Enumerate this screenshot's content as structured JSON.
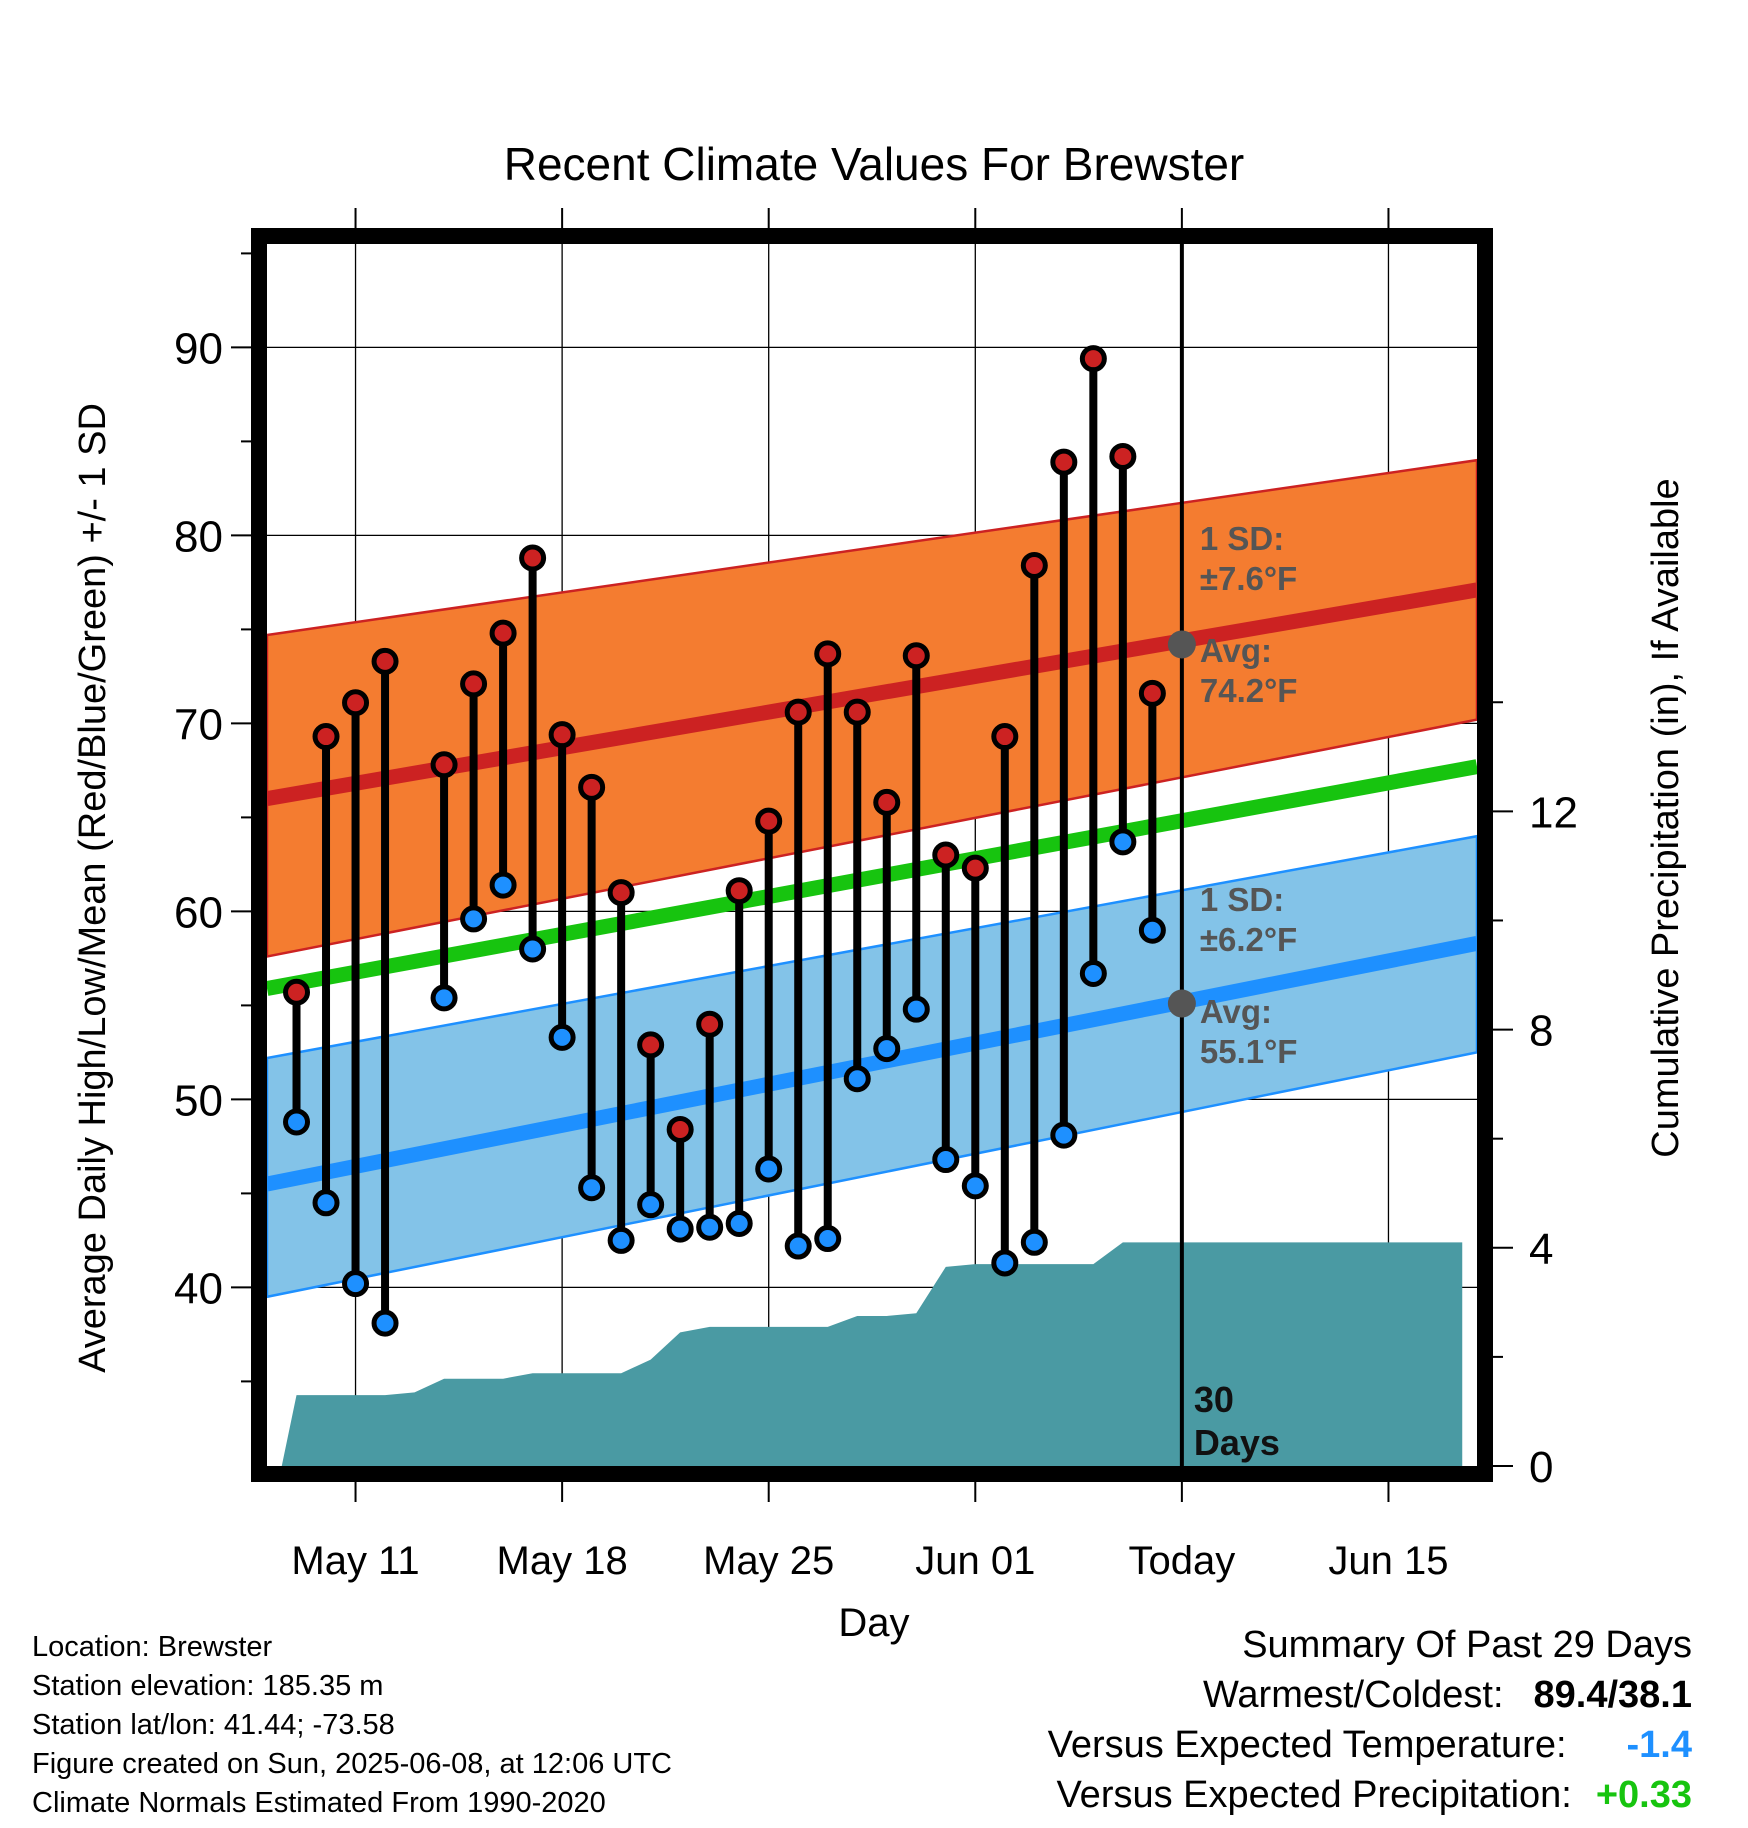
{
  "chart_data": {
    "type": "line",
    "title": "Recent Climate Values For Brewster",
    "xlabel": "Day",
    "ylabel": "Average Daily High/Low/Mean (Red/Blue/Green) +/- 1 SD",
    "y2label": "Cumulative Precipitation (in), If Available",
    "x_axis": {
      "start_date": "2025-05-08",
      "end_date": "2025-06-17",
      "ticks": [
        {
          "label": "May 11",
          "day": 3
        },
        {
          "label": "May 18",
          "day": 10
        },
        {
          "label": "May 25",
          "day": 17
        },
        {
          "label": "Jun 01",
          "day": 24
        },
        {
          "label": "Today",
          "day": 31
        },
        {
          "label": "Jun 15",
          "day": 38
        }
      ]
    },
    "ylim": [
      30.5,
      95.5
    ],
    "yticks": [
      40,
      50,
      60,
      70,
      80,
      90
    ],
    "y2lim": [
      0,
      22.4
    ],
    "y2ticks": [
      0,
      4,
      8,
      12
    ],
    "grid": true,
    "days": [
      1,
      2,
      3,
      4,
      6,
      7,
      8,
      9,
      10,
      11,
      12,
      13,
      14,
      15,
      16,
      17,
      18,
      19,
      20,
      21,
      22,
      23,
      24,
      25,
      26,
      27,
      28,
      29,
      30
    ],
    "highs": [
      55.7,
      69.3,
      71.1,
      73.3,
      67.8,
      72.1,
      74.8,
      78.8,
      69.4,
      66.6,
      61.0,
      52.9,
      48.4,
      54.0,
      61.1,
      64.8,
      70.6,
      73.7,
      70.6,
      65.8,
      73.6,
      63.0,
      62.3,
      69.3,
      78.4,
      83.9,
      89.4,
      84.2,
      71.6
    ],
    "lows": [
      48.8,
      44.5,
      40.2,
      38.1,
      55.4,
      59.6,
      61.4,
      58.0,
      53.3,
      45.3,
      42.5,
      44.4,
      43.1,
      43.2,
      43.4,
      46.3,
      42.2,
      42.6,
      51.1,
      52.7,
      54.8,
      46.8,
      45.4,
      41.3,
      42.4,
      48.1,
      56.7,
      63.7,
      59.0
    ],
    "normal_high": {
      "start": 66.0,
      "end": 77.1
    },
    "normal_high_band": {
      "start_upper": 74.7,
      "start_lower": 57.6,
      "end_upper": 84.0,
      "end_lower": 70.2
    },
    "normal_low": {
      "start": 45.5,
      "end": 58.3
    },
    "normal_low_band": {
      "start_upper": 52.2,
      "start_lower": 39.5,
      "end_upper": 64.0,
      "end_lower": 52.5
    },
    "normal_mean": {
      "start": 55.9,
      "end": 67.7
    },
    "precip": {
      "days": [
        0.5,
        1,
        2,
        3,
        4,
        5,
        6,
        7,
        8,
        9,
        10,
        11,
        12,
        13,
        14,
        15,
        16,
        17,
        18,
        19,
        20,
        21,
        22,
        23,
        24,
        25,
        26,
        27,
        28,
        29,
        30,
        31,
        32,
        33,
        34,
        35,
        36,
        37,
        38,
        39,
        40,
        40.5
      ],
      "values": [
        0,
        1.3,
        1.3,
        1.3,
        1.3,
        1.35,
        1.6,
        1.6,
        1.6,
        1.7,
        1.7,
        1.7,
        1.7,
        1.95,
        2.45,
        2.55,
        2.55,
        2.55,
        2.55,
        2.55,
        2.75,
        2.75,
        2.8,
        3.65,
        3.7,
        3.7,
        3.7,
        3.7,
        3.7,
        4.1,
        4.1,
        4.1,
        4.1,
        4.1,
        4.1,
        4.1,
        4.1,
        4.1,
        4.1,
        4.1,
        4.1,
        4.1
      ]
    },
    "today_day": 31,
    "annotations": {
      "high_sd_label": "1 SD:",
      "high_sd_value": "±7.6°F",
      "high_avg_label": "Avg:",
      "high_avg_value": "74.2°F",
      "high_avg_point": 74.2,
      "low_sd_label": "1 SD:",
      "low_sd_value": "±6.2°F",
      "low_avg_label": "Avg:",
      "low_avg_value": "55.1°F",
      "low_avg_point": 55.1,
      "days_count": "30",
      "days_word": "Days"
    },
    "colors": {
      "high": "#cc2222",
      "high_band": "#f47c30",
      "low": "#1e90ff",
      "low_band": "#83c3e8",
      "mean": "#17c40f",
      "precip": "#4a9aa3",
      "avg_point": "#555555"
    }
  },
  "footer": {
    "location": "Location: Brewster",
    "elevation": "Station elevation: 185.35 m",
    "latlon": "Station lat/lon: 41.44; -73.58",
    "created": "Figure created on Sun, 2025-06-08, at 12:06 UTC",
    "normals": "Climate Normals Estimated From 1990-2020"
  },
  "summary": {
    "title": "Summary Of Past 29 Days",
    "warmest_label": "Warmest/Coldest:",
    "warmest_value": "89.4/38.1",
    "temp_label": "Versus Expected Temperature:",
    "temp_value": "-1.4",
    "precip_label": "Versus Expected Precipitation:",
    "precip_value": "+0.33"
  }
}
